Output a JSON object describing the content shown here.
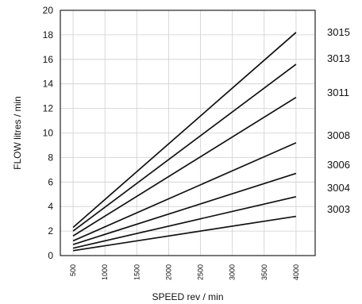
{
  "chart_data": {
    "type": "line",
    "title": "",
    "xlabel": "SPEED rev / min",
    "ylabel": "FLOW litres / min",
    "x_ticks": [
      500,
      1000,
      1500,
      2000,
      2500,
      3000,
      3500,
      4000
    ],
    "y_ticks": [
      0,
      2,
      4,
      6,
      8,
      10,
      12,
      14,
      16,
      18,
      20
    ],
    "xlim": [
      300,
      4300
    ],
    "ylim": [
      0,
      20
    ],
    "grid": true,
    "x": [
      500,
      4000
    ],
    "series": [
      {
        "name": "3015",
        "values": [
          2.3,
          18.2
        ]
      },
      {
        "name": "3013",
        "values": [
          2.0,
          15.6
        ]
      },
      {
        "name": "3011",
        "values": [
          1.6,
          12.9
        ]
      },
      {
        "name": "3008",
        "values": [
          1.2,
          9.2
        ]
      },
      {
        "name": "3006",
        "values": [
          0.9,
          6.7
        ]
      },
      {
        "name": "3004",
        "values": [
          0.6,
          4.8
        ]
      },
      {
        "name": "3003",
        "values": [
          0.4,
          3.2
        ]
      }
    ]
  }
}
